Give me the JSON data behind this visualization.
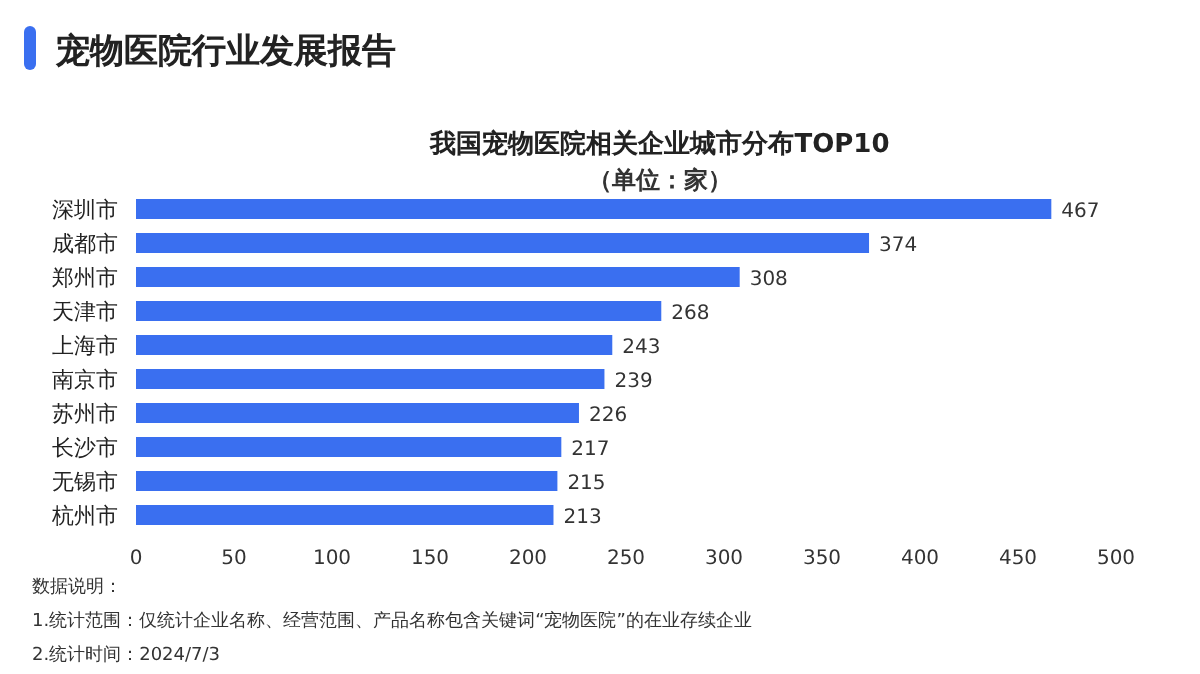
{
  "chart_data": {
    "type": "bar",
    "orientation": "horizontal",
    "title": "宠物医院行业发展报告",
    "subtitle": "我国宠物医院相关企业城市分布TOP10",
    "categories": [
      "深圳市",
      "成都市",
      "郑州市",
      "天津市",
      "上海市",
      "南京市",
      "苏州市",
      "长沙市",
      "无锡市",
      "杭州市"
    ],
    "values": [
      467,
      374,
      308,
      268,
      243,
      239,
      226,
      217,
      215,
      213
    ],
    "color": "#3a6ff0",
    "data_labels": true,
    "xlim": [
      0,
      500
    ],
    "xticks": [
      0,
      50,
      100,
      150,
      200,
      250,
      300,
      350,
      400,
      450,
      500
    ],
    "annotations": [
      "（单位：家）",
      "数据说明：",
      "1.统计范围：仅统计企业名称、经营范围、产品名称包含关键词“宠物医院”的在业存续企业",
      "2.统计时间：2024/7/3"
    ]
  }
}
